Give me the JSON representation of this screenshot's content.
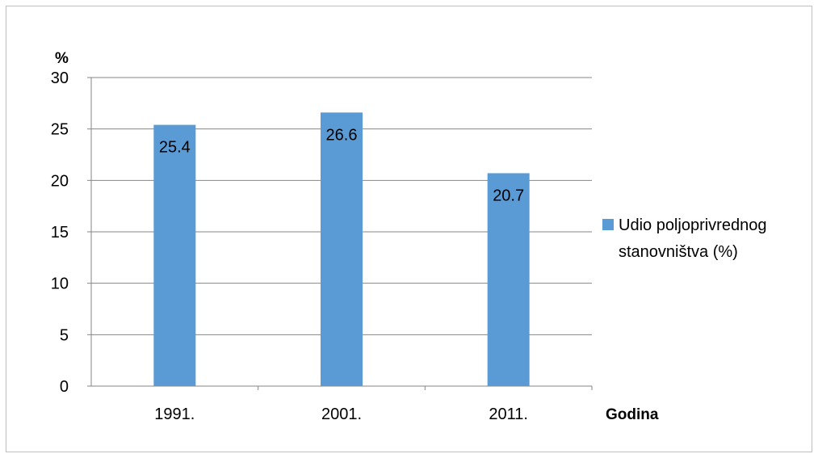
{
  "chart_data": {
    "type": "bar",
    "title": "",
    "xlabel": "Godina",
    "ylabel": "%",
    "categories": [
      "1991.",
      "2001.",
      "2011."
    ],
    "series": [
      {
        "name": "Udio poljoprivrednog stanovništva (%)",
        "values": [
          25.4,
          26.6,
          20.7
        ],
        "color": "#5b9bd5"
      }
    ],
    "value_labels": [
      "25.4",
      "26.6",
      "20.7"
    ],
    "ylim": [
      0,
      30
    ],
    "yticks": [
      0,
      5,
      10,
      15,
      20,
      25,
      30
    ],
    "grid": true,
    "legend_position": "right",
    "legend_lines": [
      "Udio poljoprivrednog",
      "stanovništva (%)"
    ]
  }
}
